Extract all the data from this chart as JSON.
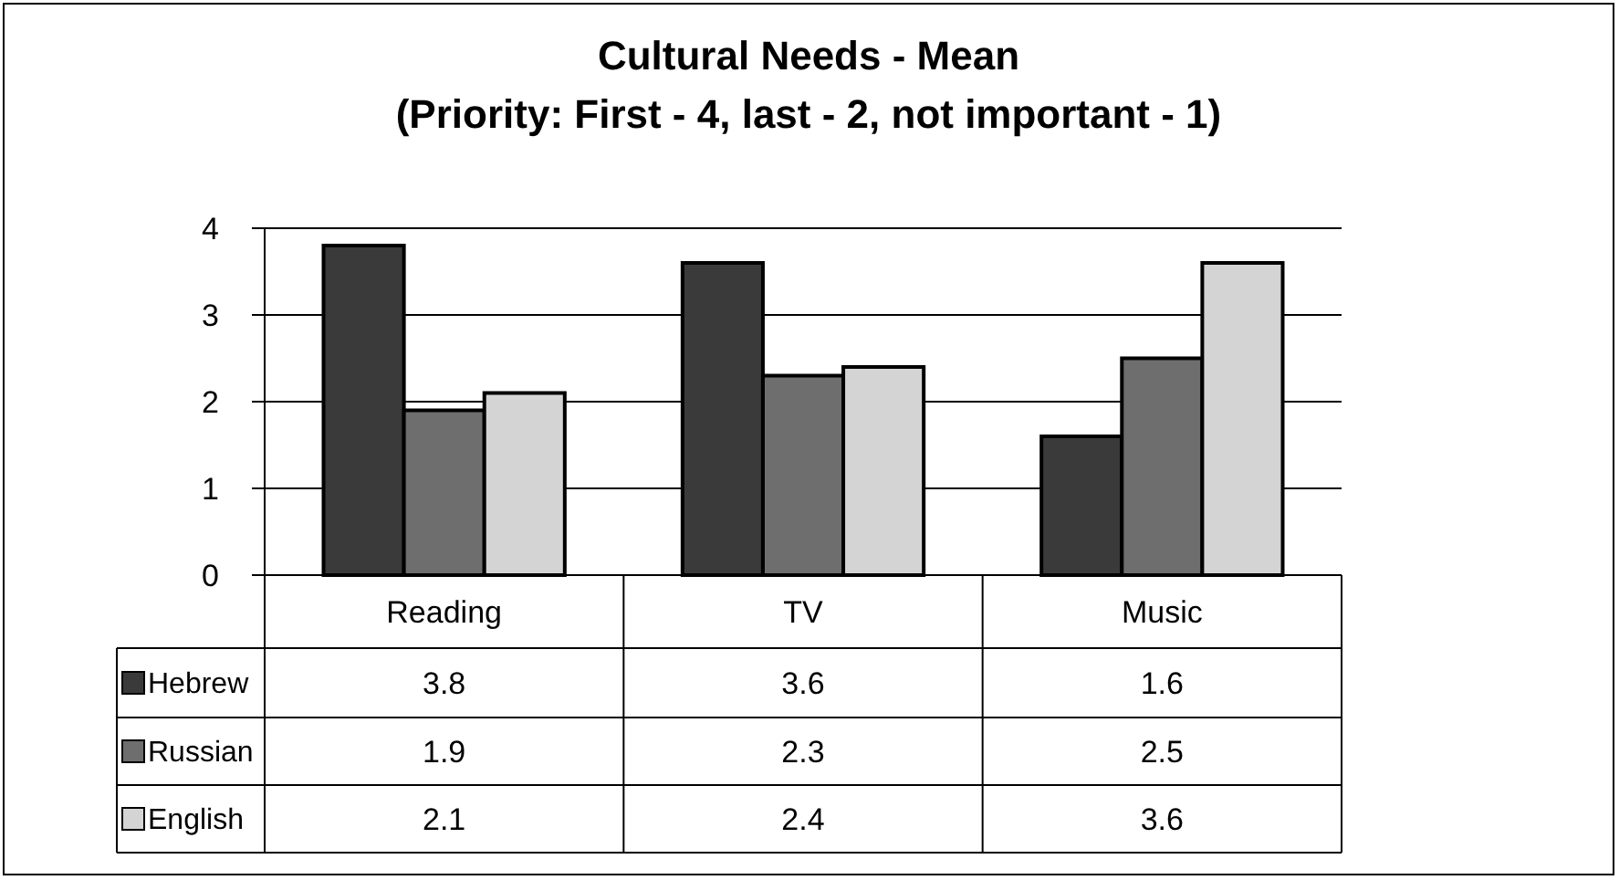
{
  "chart_data": {
    "type": "bar",
    "title": "Cultural Needs - Mean\n(Priority: First - 4, last - 2, not important - 1)",
    "categories": [
      "Reading",
      "TV",
      "Music"
    ],
    "series": [
      {
        "name": "Hebrew",
        "color": "#3a3a3a",
        "values": [
          3.8,
          3.6,
          1.6
        ]
      },
      {
        "name": "Russian",
        "color": "#6e6e6e",
        "values": [
          1.9,
          2.3,
          2.5
        ]
      },
      {
        "name": "English",
        "color": "#d4d4d4",
        "values": [
          2.1,
          2.4,
          3.6
        ]
      }
    ],
    "ylim": [
      0,
      4
    ],
    "yticks": [
      0,
      1,
      2,
      3,
      4
    ],
    "grid": "y",
    "data_labels": true,
    "legend": "bottom left"
  }
}
